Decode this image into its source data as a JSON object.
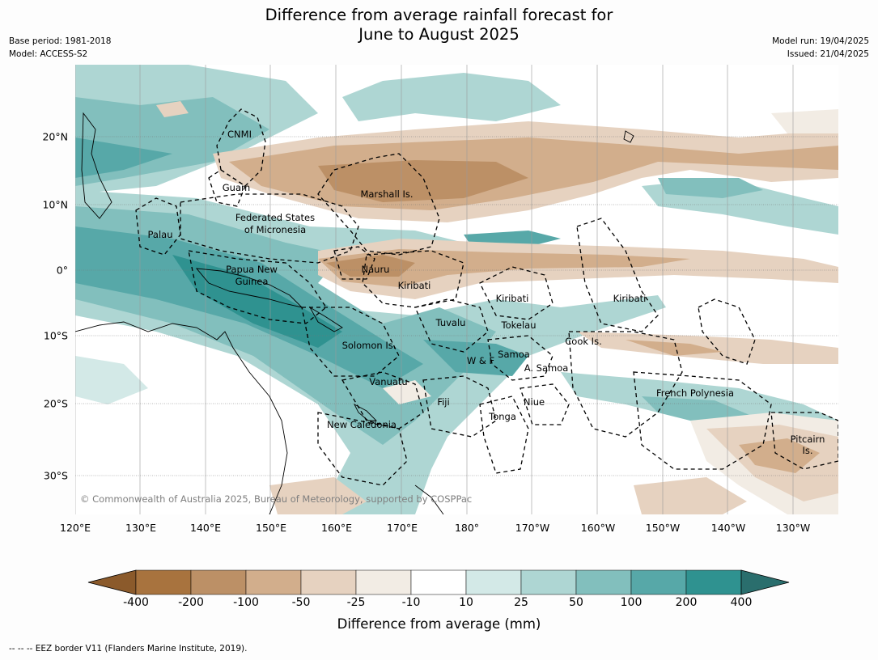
{
  "title": {
    "line1": "Difference from average rainfall forecast for",
    "line2": "June to August 2025"
  },
  "meta": {
    "base_period": "Base period: 1981-2018",
    "model": "Model: ACCESS-S2",
    "model_run": "Model run: 19/04/2025",
    "issued": "Issued: 21/04/2025"
  },
  "map": {
    "lon_ticks": [
      "120°E",
      "130°E",
      "140°E",
      "150°E",
      "160°E",
      "170°E",
      "180°",
      "170°W",
      "160°W",
      "150°W",
      "140°W",
      "130°W"
    ],
    "lat_ticks": [
      "20°N",
      "10°N",
      "0°",
      "10°S",
      "20°S",
      "30°S"
    ],
    "regions": [
      {
        "id": "cnmi",
        "label": "CNMI"
      },
      {
        "id": "guam",
        "label": "Guam"
      },
      {
        "id": "marshall-islands",
        "label": "Marshall Is."
      },
      {
        "id": "fsm-line1",
        "label": "Federated States"
      },
      {
        "id": "fsm-line2",
        "label": "of Micronesia"
      },
      {
        "id": "palau",
        "label": "Palau"
      },
      {
        "id": "nauru",
        "label": "Nauru"
      },
      {
        "id": "kiribati-west",
        "label": "Kiribati"
      },
      {
        "id": "png-line1",
        "label": "Papua New"
      },
      {
        "id": "png-line2",
        "label": "Guinea"
      },
      {
        "id": "kiribati-central",
        "label": "Kiribati"
      },
      {
        "id": "kiribati-east",
        "label": "Kiribati"
      },
      {
        "id": "tuvalu",
        "label": "Tuvalu"
      },
      {
        "id": "tokelau",
        "label": "Tokelau"
      },
      {
        "id": "cook-islands",
        "label": "Cook Is."
      },
      {
        "id": "solomon-islands",
        "label": "Solomon Is."
      },
      {
        "id": "samoa",
        "label": "Samoa"
      },
      {
        "id": "wallis-futuna",
        "label": "W & F"
      },
      {
        "id": "american-samoa",
        "label": "A. Samoa"
      },
      {
        "id": "vanuatu",
        "label": "Vanuatu"
      },
      {
        "id": "fiji",
        "label": "Fiji"
      },
      {
        "id": "niue",
        "label": "Niue"
      },
      {
        "id": "french-polynesia",
        "label": "French Polynesia"
      },
      {
        "id": "tonga",
        "label": "Tonga"
      },
      {
        "id": "new-caledonia",
        "label": "New Caledonia"
      },
      {
        "id": "pitcairn-line1",
        "label": "Pitcairn"
      },
      {
        "id": "pitcairn-line2",
        "label": "Is."
      }
    ],
    "copyright": "© Commonwealth of Australia 2025, Bureau of Meteorology, supported by COSPPac"
  },
  "colorbar": {
    "label": "Difference from average (mm)",
    "ticks": [
      "-400",
      "-200",
      "-100",
      "-50",
      "-25",
      "-10",
      "10",
      "25",
      "50",
      "100",
      "200",
      "400"
    ],
    "colors": [
      "#8b5a2b",
      "#a8733e",
      "#bc9066",
      "#d2ae8c",
      "#e6d2c0",
      "#f2ece4",
      "#ffffff",
      "#d3e9e7",
      "#aed6d3",
      "#82bfbd",
      "#57a8a8",
      "#2f9290",
      "#2a6e6d"
    ]
  },
  "eez_note": "--  --  -- EEZ border V11 (Flanders Marine Institute, 2019)."
}
